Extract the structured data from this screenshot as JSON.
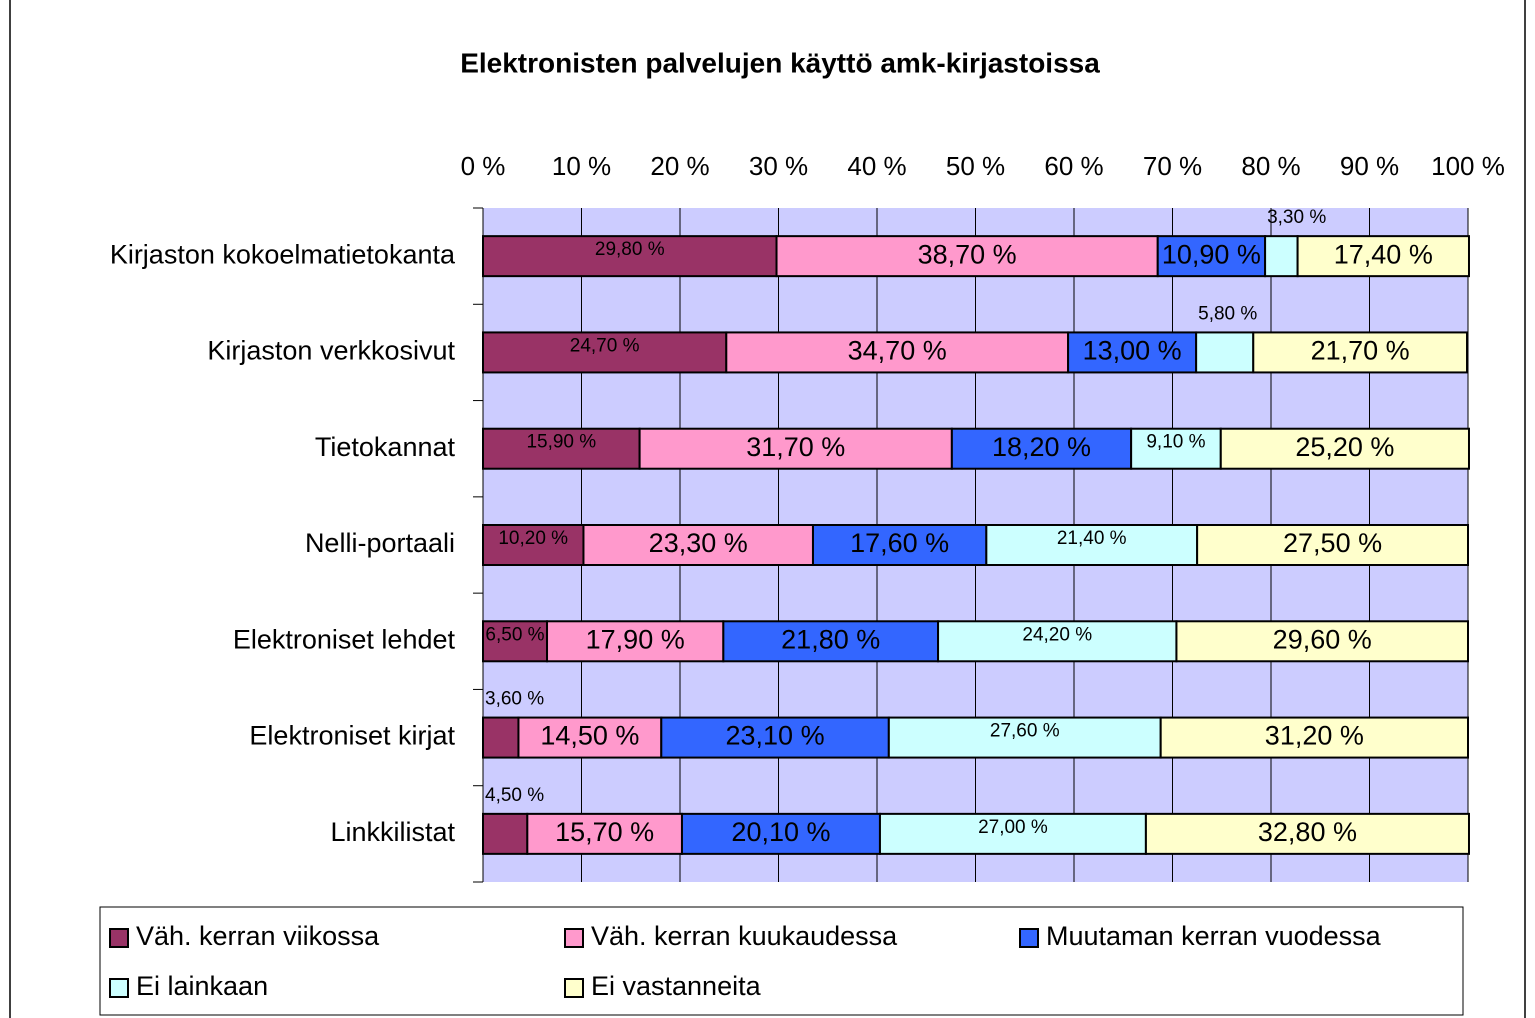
{
  "chart_data": {
    "type": "stacked_barh",
    "title": "Elektronisten palvelujen käyttö amk-kirjastoissa",
    "categories": [
      "Kirjaston kokoelmatietokanta",
      "Kirjaston verkkosivut",
      "Tietokannat",
      "Nelli-portaali",
      "Elektroniset lehdet",
      "Elektroniset kirjat",
      "Linkkilistat"
    ],
    "xlim": [
      0,
      100
    ],
    "xticks": [
      {
        "value": 0,
        "label": "0 %"
      },
      {
        "value": 10,
        "label": "10 %"
      },
      {
        "value": 20,
        "label": "20 %"
      },
      {
        "value": 30,
        "label": "30 %"
      },
      {
        "value": 40,
        "label": "40 %"
      },
      {
        "value": 50,
        "label": "50 %"
      },
      {
        "value": 60,
        "label": "60 %"
      },
      {
        "value": 70,
        "label": "70 %"
      },
      {
        "value": 80,
        "label": "80 %"
      },
      {
        "value": 90,
        "label": "90 %"
      },
      {
        "value": 100,
        "label": "100 %"
      }
    ],
    "grid": true,
    "legend": "bottom",
    "series": [
      {
        "name": "Väh. kerran viikossa",
        "color": "#993366",
        "values": [
          29.8,
          24.7,
          15.9,
          10.2,
          6.5,
          3.6,
          4.5
        ],
        "value_labels": [
          "29,80 %",
          "24,70 %",
          "15,90 %",
          "10,20 %",
          "6,50 %",
          "3,60 %",
          "4,50 %"
        ]
      },
      {
        "name": "Väh. kerran kuukaudessa",
        "color": "#ff99cc",
        "values": [
          38.7,
          34.7,
          31.7,
          23.3,
          17.9,
          14.5,
          15.7
        ],
        "value_labels": [
          "38,70 %",
          "34,70 %",
          "31,70 %",
          "23,30 %",
          "17,90 %",
          "14,50 %",
          "15,70 %"
        ]
      },
      {
        "name": "Muutaman kerran vuodessa",
        "color": "#3366ff",
        "values": [
          10.9,
          13.0,
          18.2,
          17.6,
          21.8,
          23.1,
          20.1
        ],
        "value_labels": [
          "10,90 %",
          "13,00 %",
          "18,20 %",
          "17,60 %",
          "21,80 %",
          "23,10 %",
          "20,10 %"
        ]
      },
      {
        "name": "Ei lainkaan",
        "color": "#ccffff",
        "values": [
          3.3,
          5.8,
          9.1,
          21.4,
          24.2,
          27.6,
          27.0
        ],
        "value_labels": [
          "3,30 %",
          "5,80 %",
          "9,10 %",
          "21,40 %",
          "24,20 %",
          "27,60 %",
          "27,00 %"
        ]
      },
      {
        "name": "Ei vastanneita",
        "color": "#ffffcc",
        "values": [
          17.4,
          21.7,
          25.2,
          27.5,
          29.6,
          31.2,
          32.8
        ],
        "value_labels": [
          "17,40 %",
          "21,70 %",
          "25,20 %",
          "27,50 %",
          "29,60 %",
          "31,20 %",
          "32,80 %"
        ]
      }
    ]
  }
}
